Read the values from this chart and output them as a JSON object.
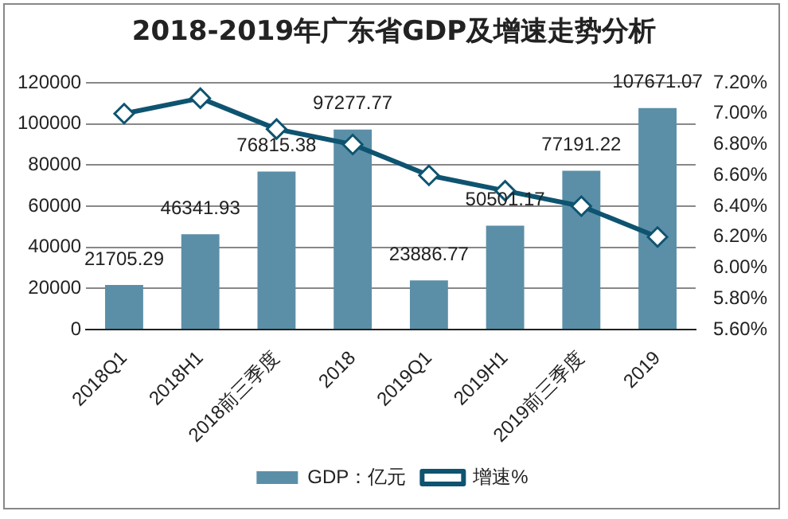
{
  "chart_data": {
    "type": "bar",
    "title": "2018-2019年广东省GDP及增速走势分析",
    "categories": [
      "2018Q1",
      "2018H1",
      "2018前三季度",
      "2018",
      "2019Q1",
      "2019H1",
      "2019前三季度",
      "2019"
    ],
    "series": [
      {
        "name": "GDP：亿元",
        "color": "#5b8fa8",
        "values": [
          21705.29,
          46341.93,
          76815.38,
          97277.77,
          23886.77,
          50501.17,
          77191.22,
          107671.07
        ],
        "value_labels": [
          "21705.29",
          "46341.93",
          "76815.38",
          "97277.77",
          "23886.77",
          "50501.17",
          "77191.22",
          "107671.07"
        ]
      },
      {
        "name": "增速%",
        "type": "line",
        "axis": "y2",
        "color": "#0e5470",
        "marker": "diamond",
        "values": [
          7.0,
          7.1,
          6.9,
          6.8,
          6.6,
          6.5,
          6.4,
          6.2
        ]
      }
    ],
    "ylim": [
      0,
      120000
    ],
    "yticks": [
      0,
      20000,
      40000,
      60000,
      80000,
      100000,
      120000
    ],
    "y2lim": [
      5.6,
      7.2
    ],
    "y2ticks": [
      {
        "value": 5.6,
        "label": "5.60%"
      },
      {
        "value": 5.8,
        "label": "5.80%"
      },
      {
        "value": 6.0,
        "label": "6.00%"
      },
      {
        "value": 6.2,
        "label": "6.20%"
      },
      {
        "value": 6.4,
        "label": "6.40%"
      },
      {
        "value": 6.6,
        "label": "6.60%"
      },
      {
        "value": 6.8,
        "label": "6.80%"
      },
      {
        "value": 7.0,
        "label": "7.00%"
      },
      {
        "value": 7.2,
        "label": "7.20%"
      }
    ],
    "grid": "y",
    "legend": "bottom"
  }
}
